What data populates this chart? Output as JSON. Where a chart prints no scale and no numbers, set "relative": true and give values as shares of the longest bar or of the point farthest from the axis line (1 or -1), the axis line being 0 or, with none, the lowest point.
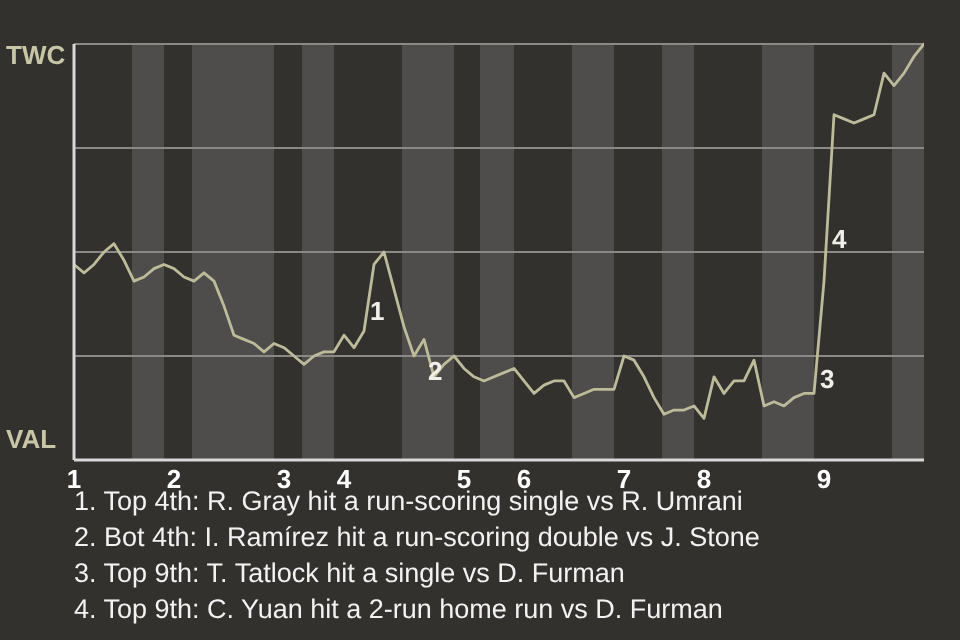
{
  "chart_data": {
    "type": "line",
    "relative": true,
    "categories": [
      "1",
      null,
      null,
      null,
      null,
      null,
      null,
      null,
      null,
      null,
      "2",
      null,
      null,
      null,
      null,
      null,
      null,
      null,
      null,
      null,
      null,
      "3",
      null,
      null,
      null,
      null,
      null,
      "4",
      null,
      null,
      null,
      null,
      null,
      null,
      null,
      null,
      null,
      null,
      null,
      "5",
      null,
      null,
      null,
      null,
      null,
      "6",
      null,
      null,
      null,
      null,
      null,
      null,
      null,
      null,
      null,
      "7",
      null,
      null,
      null,
      null,
      null,
      null,
      null,
      "8",
      null,
      null,
      null,
      null,
      null,
      null,
      null,
      null,
      null,
      null,
      null,
      "9",
      null,
      null,
      null,
      null,
      null,
      null,
      null,
      null,
      null,
      null
    ],
    "series": [
      {
        "color": "#bdbb9a",
        "values": [
          0.47,
          0.45,
          0.47,
          0.5,
          0.52,
          0.48,
          0.43,
          0.44,
          0.46,
          0.47,
          0.46,
          0.44,
          0.43,
          0.45,
          0.43,
          0.37,
          0.3,
          0.29,
          0.28,
          0.26,
          0.28,
          0.27,
          0.25,
          0.23,
          0.25,
          0.26,
          0.26,
          0.3,
          0.27,
          0.31,
          0.47,
          0.5,
          0.41,
          0.32,
          0.25,
          0.29,
          0.2,
          0.23,
          0.25,
          0.22,
          0.2,
          0.19,
          0.2,
          0.21,
          0.22,
          0.19,
          0.16,
          0.18,
          0.19,
          0.19,
          0.15,
          0.16,
          0.17,
          0.17,
          0.17,
          0.25,
          0.24,
          0.2,
          0.15,
          0.11,
          0.12,
          0.12,
          0.13,
          0.1,
          0.2,
          0.16,
          0.19,
          0.19,
          0.24,
          0.13,
          0.14,
          0.13,
          0.15,
          0.16,
          0.16,
          0.43,
          0.83,
          0.82,
          0.81,
          0.82,
          0.83,
          0.93,
          0.9,
          0.93,
          0.97,
          1
        ]
      }
    ],
    "grid": "y",
    "legend": false,
    "marker": "none",
    "line_style": "solid",
    "annotations": [
      "TWC",
      "VAL",
      "1",
      "2",
      "3",
      "4",
      "1. Top 4th: R. Gray hit a run-scoring single vs R. Umrani",
      "2. Bot 4th: I. Ramírez hit a run-scoring double vs J. Stone",
      "3. Top 9th: T. Tatlock hit a single vs D. Furman",
      "4. Top 9th: C. Yuan hit a 2-run home run vs D. Furman"
    ]
  }
}
